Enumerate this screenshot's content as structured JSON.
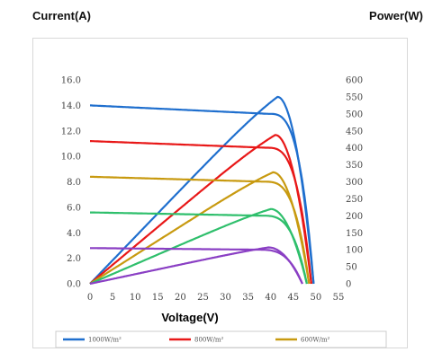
{
  "header": {
    "left_label": "Current(A)",
    "right_label": "Power(W)"
  },
  "chart_data": {
    "type": "line",
    "title": "",
    "xlabel": "Voltage(V)",
    "ylabel_left": "Current(A)",
    "ylabel_right": "Power(W)",
    "xlim": [
      0,
      55
    ],
    "ylim_left": [
      0,
      16
    ],
    "ylim_right": [
      0,
      600
    ],
    "x_ticks": [
      "0",
      "5",
      "10",
      "15",
      "20",
      "25",
      "30",
      "35",
      "40",
      "45",
      "50",
      "55"
    ],
    "y_left_ticks": [
      "0.0",
      "2.0",
      "4.0",
      "6.0",
      "8.0",
      "10.0",
      "12.0",
      "14.0",
      "16.0"
    ],
    "y_right_ticks": [
      "0",
      "50",
      "100",
      "150",
      "200",
      "250",
      "300",
      "350",
      "400",
      "450",
      "500",
      "550",
      "600"
    ],
    "grid": false,
    "legend_position": "bottom",
    "series": [
      {
        "name": "1000W/m²",
        "color": "#1f6fce",
        "isc": 14.0,
        "voc": 49.5,
        "vmp": 41.5,
        "pmax": 550
      },
      {
        "name": "800W/m²",
        "color": "#e81818",
        "isc": 11.2,
        "voc": 49.0,
        "vmp": 41.0,
        "pmax": 438
      },
      {
        "name": "600W/m²",
        "color": "#c89a10",
        "isc": 8.4,
        "voc": 48.5,
        "vmp": 40.5,
        "pmax": 328
      },
      {
        "name": "",
        "color": "#2fbf6c",
        "isc": 5.6,
        "voc": 48.0,
        "vmp": 40.0,
        "pmax": 220
      },
      {
        "name": "",
        "color": "#8a3fc4",
        "isc": 2.8,
        "voc": 47.0,
        "vmp": 39.5,
        "pmax": 107
      }
    ]
  }
}
